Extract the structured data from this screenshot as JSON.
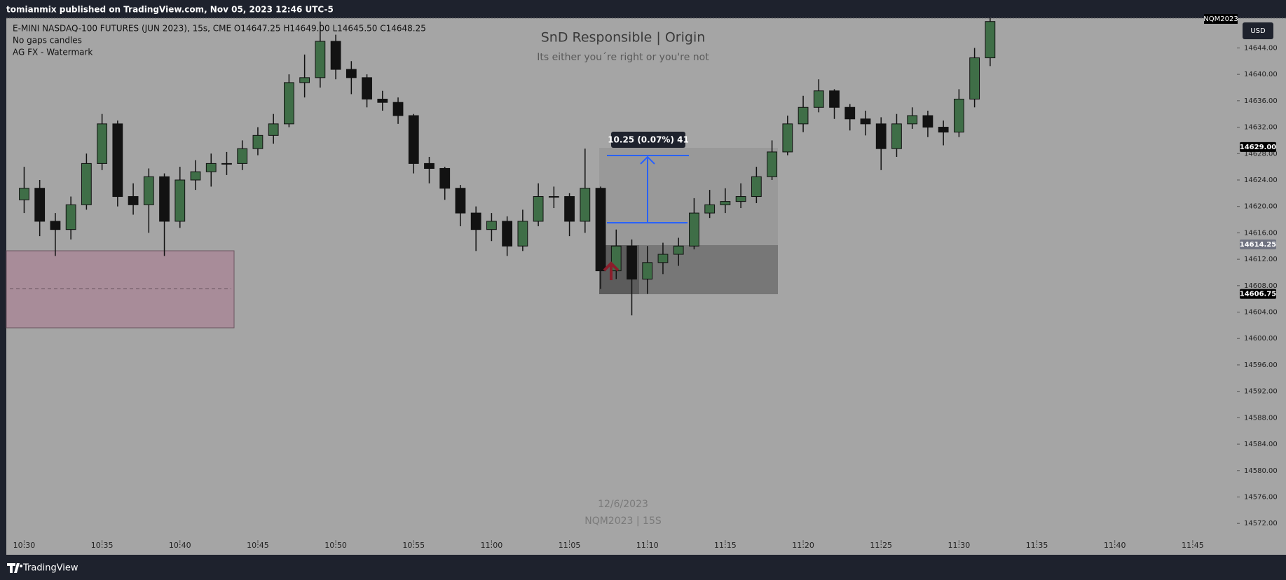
{
  "header": "tomianmix published on TradingView.com, Nov 05, 2023 12:46 UTC-5",
  "footer": "TradingView",
  "chart_data": {
    "type": "candlestick",
    "title": "SnD Responsible | Origin",
    "subtitle": "Its either you´re right or you're not",
    "symbol_info": "E-MINI NASDAQ-100 FUTURES (JUN 2023), 15s, CME  O14647.25  H14649.00  L14645.50  C14648.25",
    "indicators": [
      "No gaps candles",
      "AG FX - Watermark"
    ],
    "watermark": [
      "12/6/2023",
      "NQM2023 | 15S"
    ],
    "measure_label": "10.25 (0.07%) 41",
    "currency": "USD",
    "symbol_tag": "NQM2023",
    "up_color": "#3f6e47",
    "down_color": "#121212",
    "grid": false,
    "x": [
      630,
      631,
      632,
      633,
      634,
      635,
      636,
      637,
      638,
      639,
      640,
      641,
      642,
      643,
      644,
      645,
      646,
      647,
      648,
      649,
      650,
      651,
      652,
      653,
      654,
      655,
      656,
      657,
      658,
      659,
      660,
      661,
      662,
      663,
      664,
      665,
      666,
      667,
      668,
      669,
      670,
      671,
      672,
      673,
      674,
      675,
      676,
      677,
      678,
      679,
      680,
      681,
      682,
      683,
      684,
      685,
      686,
      687,
      688,
      689,
      690,
      691,
      692
    ],
    "open": [
      14621,
      14622.75,
      14617.75,
      14616.5,
      14620.25,
      14626.5,
      14632.5,
      14621.5,
      14620.25,
      14624.5,
      14617.75,
      14624,
      14625.25,
      14626.5,
      14626.5,
      14628.75,
      14630.75,
      14632.5,
      14638.75,
      14639.5,
      14645,
      14640.75,
      14639.5,
      14636.25,
      14635.75,
      14633.75,
      14626.5,
      14625.75,
      14622.75,
      14619,
      14616.5,
      14617.75,
      14614,
      14617.75,
      14621.5,
      14621.5,
      14617.75,
      14622.75,
      14610.25,
      14614,
      14609,
      14611.5,
      14612.75,
      14614,
      14619,
      14620.25,
      14620.75,
      14621.5,
      14624.5,
      14628.25,
      14632.5,
      14635,
      14637.5,
      14635,
      14633.25,
      14632.5,
      14628.75,
      14632.5,
      14633.75,
      14632,
      14631.25,
      14636.25,
      14642.5
    ],
    "high": [
      14626,
      14624,
      14619,
      14621.5,
      14628,
      14634,
      14633,
      14623.5,
      14625.75,
      14625,
      14626,
      14627,
      14628,
      14628.25,
      14630,
      14632,
      14634,
      14640,
      14643,
      14648,
      14646,
      14642,
      14640,
      14637.5,
      14636.5,
      14634,
      14627.5,
      14626,
      14623.25,
      14620,
      14619,
      14618.5,
      14619.5,
      14623.5,
      14623,
      14622,
      14628.75,
      14623,
      14616.5,
      14615,
      14614,
      14614.5,
      14615.25,
      14621.25,
      14622.5,
      14622.75,
      14623.5,
      14626,
      14630,
      14633.75,
      14636.75,
      14639.25,
      14637.75,
      14635.5,
      14634.5,
      14633.5,
      14634,
      14635,
      14634.5,
      14633,
      14637.75,
      14644,
      14648.5
    ],
    "low": [
      14619,
      14615.5,
      14612.5,
      14615,
      14619.5,
      14625.5,
      14620,
      14618.75,
      14616,
      14612.5,
      14616.75,
      14622.5,
      14623,
      14624.75,
      14625.5,
      14627.75,
      14629.5,
      14632,
      14636.5,
      14638,
      14639.25,
      14637,
      14635,
      14634.5,
      14632.5,
      14625,
      14623.5,
      14621,
      14617,
      14613.25,
      14614.75,
      14612.5,
      14613.25,
      14617,
      14619.75,
      14615.5,
      14616,
      14607.5,
      14609,
      14603.5,
      14606.75,
      14609.75,
      14611,
      14613.5,
      14618.25,
      14619,
      14619.75,
      14620.5,
      14624,
      14627.75,
      14631.25,
      14634.25,
      14633.25,
      14631.5,
      14630.75,
      14625.5,
      14627.5,
      14631.75,
      14630.5,
      14629.25,
      14630.5,
      14635,
      14641.25
    ],
    "close": [
      14622.75,
      14617.75,
      14616.5,
      14620.25,
      14626.5,
      14632.5,
      14621.5,
      14620.25,
      14624.5,
      14617.75,
      14624,
      14625.25,
      14626.5,
      14626.5,
      14628.75,
      14630.75,
      14632.5,
      14638.75,
      14639.5,
      14645,
      14640.75,
      14639.5,
      14636.25,
      14635.75,
      14633.75,
      14626.5,
      14625.75,
      14622.75,
      14619,
      14616.5,
      14617.75,
      14614,
      14617.75,
      14621.5,
      14621.5,
      14617.75,
      14622.75,
      14610.25,
      14614,
      14609,
      14611.5,
      14612.75,
      14614,
      14619,
      14620.25,
      14620.75,
      14621.5,
      14624.5,
      14628.25,
      14632.5,
      14635,
      14637.5,
      14635,
      14633.25,
      14632.5,
      14628.75,
      14632.5,
      14633.75,
      14632,
      14631.25,
      14636.25,
      14642.5,
      14648
    ],
    "xlim": [
      628.9,
      707.84
    ],
    "xticks": [
      {
        "value": 630,
        "label": "10:30"
      },
      {
        "value": 635,
        "label": "10:35"
      },
      {
        "value": 640,
        "label": "10:40"
      },
      {
        "value": 645,
        "label": "10:45"
      },
      {
        "value": 650,
        "label": "10:50"
      },
      {
        "value": 655,
        "label": "10:55"
      },
      {
        "value": 660,
        "label": "11:00"
      },
      {
        "value": 665,
        "label": "11:05"
      },
      {
        "value": 670,
        "label": "11:10"
      },
      {
        "value": 675,
        "label": "11:15"
      },
      {
        "value": 680,
        "label": "11:20"
      },
      {
        "value": 685,
        "label": "11:25"
      },
      {
        "value": 690,
        "label": "11:30"
      },
      {
        "value": 695,
        "label": "11:35"
      },
      {
        "value": 700,
        "label": "11:40"
      },
      {
        "value": 705,
        "label": "11:45"
      }
    ],
    "ylim": [
      14569.9,
      14648.5
    ],
    "yticks": [
      {
        "value": 14572,
        "label": "14572.00"
      },
      {
        "value": 14576,
        "label": "14576.00"
      },
      {
        "value": 14580,
        "label": "14580.00"
      },
      {
        "value": 14584,
        "label": "14584.00"
      },
      {
        "value": 14588,
        "label": "14588.00"
      },
      {
        "value": 14592,
        "label": "14592.00"
      },
      {
        "value": 14596,
        "label": "14596.00"
      },
      {
        "value": 14600,
        "label": "14600.00"
      },
      {
        "value": 14604,
        "label": "14604.00"
      },
      {
        "value": 14608,
        "label": "14608.00"
      },
      {
        "value": 14612,
        "label": "14612.00"
      },
      {
        "value": 14616,
        "label": "14616.00"
      },
      {
        "value": 14620,
        "label": "14620.00"
      },
      {
        "value": 14624,
        "label": "14624.00"
      },
      {
        "value": 14628,
        "label": "14628.00"
      },
      {
        "value": 14632,
        "label": "14632.00"
      },
      {
        "value": 14636,
        "label": "14636.00"
      },
      {
        "value": 14640,
        "label": "14640.00"
      },
      {
        "value": 14644,
        "label": "14644.00"
      }
    ],
    "price_labels": [
      {
        "value": 14629,
        "label": "14629.00",
        "color": "#000000"
      },
      {
        "value": 14614.25,
        "label": "14614.25",
        "color": "#6f7280"
      },
      {
        "value": 14606.75,
        "label": "14606.75",
        "color": "#000000"
      }
    ]
  }
}
